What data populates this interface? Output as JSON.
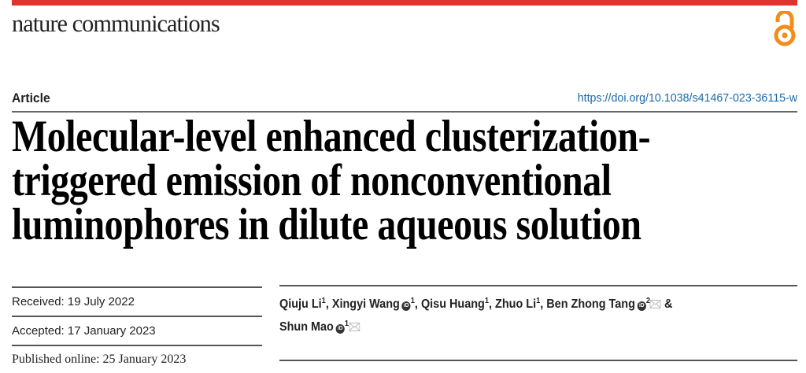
{
  "header": {
    "journal": "nature communications",
    "open_access_icon": "open-access-icon",
    "accent_color": "#e2322d",
    "open_access_color": "#f28c1a"
  },
  "article": {
    "type": "Article",
    "doi": "https://doi.org/10.1038/s41467-023-36115-w",
    "title_lines": [
      "Molecular-level enhanced clusterization-",
      "triggered emission of nonconventional",
      "luminophores in dilute aqueous solution"
    ]
  },
  "dates": {
    "received": "Received: 19 July 2022",
    "accepted": "Accepted: 17 January 2023",
    "published": "Published online: 25 January 2023"
  },
  "authors": [
    {
      "name": "Qiuju Li",
      "aff": "1",
      "orcid": false,
      "corresponding": false,
      "sep": ", "
    },
    {
      "name": "Xingyi Wang",
      "aff": "1",
      "orcid": true,
      "corresponding": false,
      "sep": ", "
    },
    {
      "name": "Qisu Huang",
      "aff": "1",
      "orcid": false,
      "corresponding": false,
      "sep": ", "
    },
    {
      "name": "Zhuo Li",
      "aff": "1",
      "orcid": false,
      "corresponding": false,
      "sep": ", "
    },
    {
      "name": "Ben Zhong Tang",
      "aff": "2",
      "orcid": true,
      "corresponding": true,
      "sep": " & "
    },
    {
      "name": "Shun Mao",
      "aff": "1",
      "orcid": true,
      "corresponding": true,
      "sep": ""
    }
  ]
}
